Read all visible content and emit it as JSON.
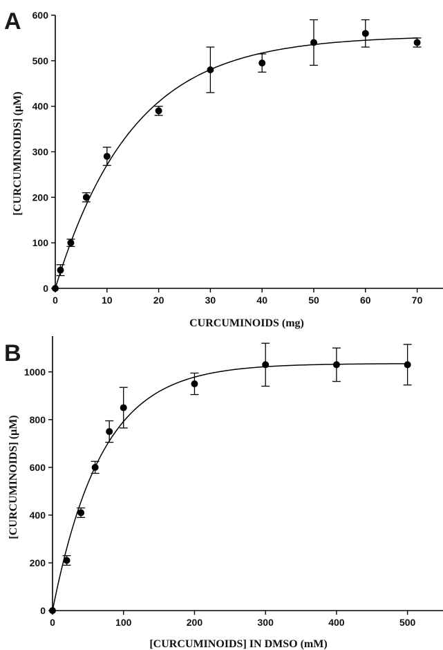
{
  "panels": [
    {
      "letter": "A",
      "chart_data": {
        "type": "scatter",
        "title": "",
        "xlabel": "CURCUMINOIDS (mg)",
        "ylabel": "[CURCUMINOIDS] (μM)",
        "xlim": [
          0,
          75
        ],
        "ylim": [
          0,
          600
        ],
        "xticks": [
          0,
          10,
          20,
          30,
          40,
          50,
          60,
          70
        ],
        "yticks": [
          0,
          100,
          200,
          300,
          400,
          500,
          600
        ],
        "grid": false,
        "points": [
          {
            "x": 0,
            "y": 0,
            "err": 0
          },
          {
            "x": 1,
            "y": 40,
            "err": 12
          },
          {
            "x": 3,
            "y": 100,
            "err": 8
          },
          {
            "x": 6,
            "y": 200,
            "err": 10
          },
          {
            "x": 10,
            "y": 290,
            "err": 20
          },
          {
            "x": 20,
            "y": 390,
            "err": 10
          },
          {
            "x": 30,
            "y": 480,
            "err": 50
          },
          {
            "x": 40,
            "y": 495,
            "err": 20
          },
          {
            "x": 50,
            "y": 540,
            "err": 50
          },
          {
            "x": 60,
            "y": 560,
            "err": 30
          },
          {
            "x": 70,
            "y": 540,
            "err": 10
          }
        ],
        "fit": {
          "model": "y = a*(1-exp(-b*x))",
          "a": 555,
          "b": 0.067,
          "x_max": 70
        }
      }
    },
    {
      "letter": "B",
      "chart_data": {
        "type": "scatter",
        "title": "",
        "xlabel": "[CURCUMINOIDS] IN DMSO (mM)",
        "ylabel": "[CURCUMINOIDS] (μM)",
        "xlim": [
          0,
          550
        ],
        "ylim": [
          0,
          1150
        ],
        "xticks": [
          0,
          100,
          200,
          300,
          400,
          500
        ],
        "yticks": [
          0,
          200,
          400,
          600,
          800,
          1000
        ],
        "grid": false,
        "points": [
          {
            "x": 0,
            "y": 0,
            "err": 0
          },
          {
            "x": 20,
            "y": 210,
            "err": 20
          },
          {
            "x": 40,
            "y": 410,
            "err": 20
          },
          {
            "x": 60,
            "y": 600,
            "err": 25
          },
          {
            "x": 80,
            "y": 750,
            "err": 45
          },
          {
            "x": 100,
            "y": 850,
            "err": 85
          },
          {
            "x": 200,
            "y": 950,
            "err": 45
          },
          {
            "x": 300,
            "y": 1030,
            "err": 90
          },
          {
            "x": 400,
            "y": 1030,
            "err": 70
          },
          {
            "x": 500,
            "y": 1030,
            "err": 85
          }
        ],
        "fit": {
          "model": "y = a*(1-exp(-b*x))",
          "a": 1035,
          "b": 0.0145,
          "x_max": 500
        }
      }
    }
  ]
}
